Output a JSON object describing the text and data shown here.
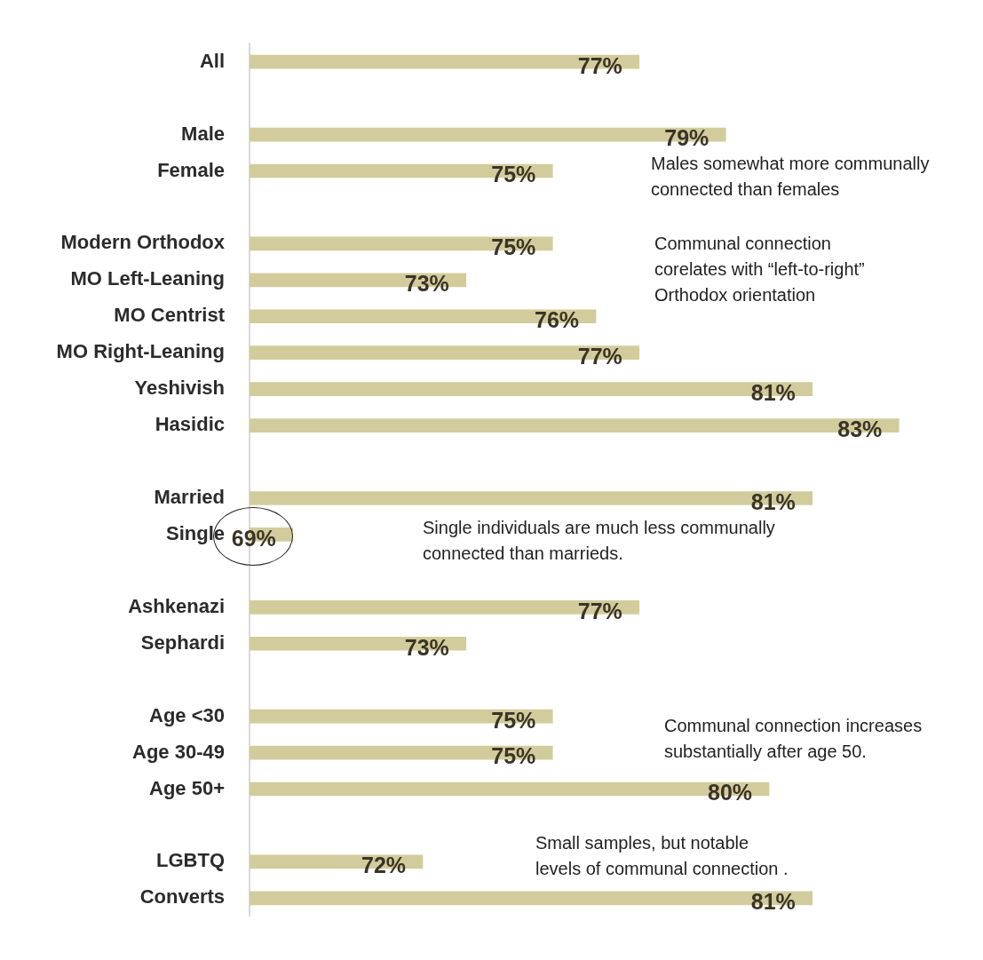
{
  "chart_data": {
    "type": "bar",
    "orientation": "horizontal",
    "categories": [
      "All",
      null,
      "Male",
      "Female",
      null,
      "Modern Orthodox",
      "MO Left-Leaning",
      "MO Centrist",
      "MO Right-Leaning",
      "Yeshivish",
      "Hasidic",
      null,
      "Married",
      "Single",
      null,
      "Ashkenazi",
      "Sephardi",
      null,
      "Age <30",
      "Age 30-49",
      "Age 50+",
      null,
      "LGBTQ",
      "Converts"
    ],
    "values": [
      77,
      null,
      79,
      75,
      null,
      75,
      73,
      76,
      77,
      81,
      83,
      null,
      81,
      69,
      null,
      77,
      73,
      null,
      75,
      75,
      80,
      null,
      72,
      81
    ],
    "value_labels": [
      "77%",
      null,
      "79%",
      "75%",
      null,
      "75%",
      "73%",
      "76%",
      "77%",
      "81%",
      "83%",
      null,
      "81%",
      "69%",
      null,
      "77%",
      "73%",
      null,
      "75%",
      "75%",
      "80%",
      null,
      "72%",
      "81%"
    ],
    "color": "#d2cc9c",
    "tick_labels": "y",
    "legend": false,
    "annotations": [
      "Males somewhat more communally\nconnected than females",
      "Communal connection\ncorelates with “left-to-right”\nOrthodox orientation",
      "Single individuals are much less communally\nconnected than marrieds.",
      "Communal connection increases\nsubstantially after age 50.",
      "Small samples, but notable\nlevels of communal connection ."
    ]
  }
}
